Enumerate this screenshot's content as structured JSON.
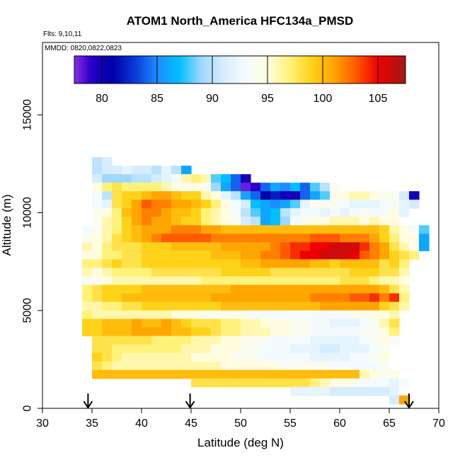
{
  "chart_data": {
    "type": "heatmap",
    "title": "ATOM1 North_America HFC134a_PMSD",
    "flights_label": "Flts: 9,10,11",
    "mmdd_label": "MMDD: 0820,0822,0823",
    "xlabel": "Latitude (deg N)",
    "ylabel": "Altitude (m)",
    "xlim": [
      30,
      70
    ],
    "ylim": [
      0,
      18700
    ],
    "x_ticks": [
      30,
      35,
      40,
      45,
      50,
      55,
      60,
      65,
      70
    ],
    "y_ticks": [
      0,
      5000,
      10000,
      15000
    ],
    "x_tick_labels": [
      "30",
      "35",
      "40",
      "45",
      "50",
      "55",
      "60",
      "65",
      "70"
    ],
    "y_tick_labels": [
      "0",
      "5000",
      "10000",
      "15000"
    ],
    "colorbar": {
      "range": [
        77.5,
        107.5
      ],
      "ticks": [
        80,
        85,
        90,
        95,
        100,
        105
      ],
      "tick_labels": [
        "80",
        "85",
        "90",
        "95",
        "100",
        "105"
      ],
      "stops": [
        {
          "value": 77.5,
          "color": "#8a2be2"
        },
        {
          "value": 79,
          "color": "#2a00c8"
        },
        {
          "value": 81,
          "color": "#0000a8"
        },
        {
          "value": 83,
          "color": "#0a3ad8"
        },
        {
          "value": 85,
          "color": "#1e8cff"
        },
        {
          "value": 87,
          "color": "#00bfff"
        },
        {
          "value": 89,
          "color": "#9fd8ff"
        },
        {
          "value": 91,
          "color": "#d6ecff"
        },
        {
          "value": 93,
          "color": "#f4fbff"
        },
        {
          "value": 95,
          "color": "#fffce0"
        },
        {
          "value": 97,
          "color": "#fff27a"
        },
        {
          "value": 99,
          "color": "#ffd21a"
        },
        {
          "value": 101,
          "color": "#ffa500"
        },
        {
          "value": 103,
          "color": "#ff5a00"
        },
        {
          "value": 105,
          "color": "#ee0000"
        },
        {
          "value": 107.5,
          "color": "#a01818"
        }
      ]
    },
    "bin": {
      "lat_width": 1.0,
      "alt_height": 435
    },
    "rows": [
      {
        "alt": 12620,
        "lat_start": 35,
        "values": [
          90,
          91
        ]
      },
      {
        "alt": 12185,
        "lat_start": 35,
        "values": [
          90,
          91,
          91,
          92,
          91,
          91,
          90,
          92,
          90,
          86
        ]
      },
      {
        "alt": 11750,
        "lat_start": 35,
        "values": [
          91,
          89,
          89,
          89,
          90,
          90,
          91,
          92,
          93,
          96,
          97,
          96,
          88,
          87,
          84,
          80
        ]
      },
      {
        "alt": 11315,
        "lat_start": 35,
        "values": [
          95,
          97,
          98,
          97,
          97,
          97,
          97,
          96,
          95,
          94,
          95,
          94,
          89,
          86,
          84,
          78,
          79,
          84,
          86,
          85,
          87,
          84,
          88,
          90,
          94
        ]
      },
      {
        "alt": 10880,
        "lat_start": 35,
        "values": [
          93,
          90,
          98,
          99,
          99,
          100,
          101,
          101,
          100,
          99,
          99,
          96,
          95,
          92,
          90,
          86,
          84,
          81,
          82,
          80,
          80,
          84,
          86,
          88,
          94,
          95,
          96,
          96,
          95,
          94,
          94,
          91,
          80
        ]
      },
      {
        "alt": 10445,
        "lat_start": 35,
        "values": [
          93,
          92,
          98,
          99,
          101,
          103,
          102,
          102,
          101,
          101,
          100,
          99,
          97,
          95,
          93,
          91,
          87,
          86,
          85,
          86,
          88,
          92,
          94,
          94,
          94,
          93,
          92,
          92,
          92,
          93,
          94,
          92,
          91
        ]
      },
      {
        "alt": 10010,
        "lat_start": 35,
        "values": [
          94,
          95,
          97,
          100,
          101,
          102,
          102,
          101,
          100,
          100,
          99,
          97,
          96,
          95,
          93,
          90,
          88,
          86,
          87,
          90,
          92,
          93,
          93,
          92,
          93,
          92,
          93,
          94,
          93,
          93,
          95,
          92
        ]
      },
      {
        "alt": 9575,
        "lat_start": 35,
        "values": [
          94,
          96,
          97,
          99,
          101,
          102,
          101,
          101,
          100,
          99,
          99,
          97,
          96,
          95,
          94,
          91,
          90,
          86,
          87,
          89,
          93,
          94,
          95,
          95,
          96,
          96,
          96,
          95,
          96,
          95,
          95
        ]
      },
      {
        "alt": 9140,
        "lat_start": 34,
        "values": [
          93,
          94,
          96,
          97,
          99,
          100,
          101,
          101,
          101,
          102,
          102,
          102,
          101,
          101,
          100,
          100,
          100,
          100,
          100,
          100,
          100,
          100,
          100,
          100,
          100,
          100,
          100,
          100,
          100,
          100,
          99,
          96,
          95,
          93,
          88
        ]
      },
      {
        "alt": 8705,
        "lat_start": 34,
        "values": [
          94,
          95,
          96,
          98,
          99,
          100,
          101,
          102,
          103,
          103,
          103,
          103,
          103,
          102,
          102,
          102,
          102,
          102,
          102,
          102,
          102,
          102,
          102,
          103,
          103,
          103,
          102,
          102,
          102,
          101,
          99,
          97,
          95,
          95,
          86
        ]
      },
      {
        "alt": 8270,
        "lat_start": 34,
        "values": [
          96,
          95,
          97,
          98,
          98,
          98,
          99,
          99,
          99,
          100,
          100,
          100,
          100,
          100,
          101,
          101,
          101,
          101,
          101,
          102,
          103,
          104,
          104,
          105,
          105,
          106,
          106,
          106,
          104,
          102,
          101,
          98,
          96,
          94,
          86
        ]
      },
      {
        "alt": 7835,
        "lat_start": 34,
        "values": [
          95,
          95,
          97,
          97,
          98,
          98,
          99,
          99,
          99,
          99,
          99,
          99,
          99,
          100,
          100,
          100,
          101,
          101,
          102,
          102,
          103,
          104,
          105,
          105,
          106,
          106,
          106,
          105,
          103,
          102,
          101,
          99,
          98,
          97
        ]
      },
      {
        "alt": 7400,
        "lat_start": 34,
        "values": [
          97,
          97,
          98,
          99,
          98,
          98,
          99,
          99,
          99,
          99,
          99,
          99,
          99,
          99,
          99,
          99,
          100,
          100,
          101,
          101,
          101,
          101,
          101,
          100,
          100,
          99,
          100,
          100,
          100,
          100,
          98,
          99,
          97
        ]
      },
      {
        "alt": 6965,
        "lat_start": 34,
        "values": [
          96,
          95,
          96,
          97,
          97,
          97,
          97,
          98,
          98,
          98,
          98,
          98,
          98,
          98,
          99,
          99,
          99,
          99,
          99,
          98,
          98,
          98,
          98,
          98,
          98,
          98,
          98,
          99,
          99,
          99,
          98,
          98,
          96
        ]
      },
      {
        "alt": 6530,
        "lat_start": 34,
        "values": [
          94,
          94,
          95,
          96,
          96,
          96,
          96,
          96,
          96,
          96,
          96,
          96,
          97,
          97,
          97,
          97,
          97,
          97,
          97,
          97,
          97,
          97,
          97,
          97,
          97,
          97,
          98,
          98,
          98,
          97,
          96,
          96,
          95
        ]
      },
      {
        "alt": 6095,
        "lat_start": 34,
        "values": [
          97,
          98,
          99,
          99,
          99,
          99,
          100,
          100,
          100,
          100,
          100,
          100,
          100,
          100,
          100,
          101,
          101,
          101,
          101,
          101,
          101,
          101,
          101,
          101,
          101,
          101,
          101,
          101,
          101,
          101,
          100,
          98,
          96
        ]
      },
      {
        "alt": 5660,
        "lat_start": 34,
        "values": [
          97,
          98,
          99,
          99,
          100,
          100,
          100,
          100,
          100,
          100,
          100,
          100,
          100,
          101,
          101,
          101,
          101,
          101,
          101,
          101,
          101,
          101,
          101,
          102,
          102,
          102,
          102,
          103,
          103,
          104,
          102,
          104,
          97
        ]
      },
      {
        "alt": 5225,
        "lat_start": 34,
        "values": [
          96,
          96,
          97,
          97,
          98,
          98,
          99,
          99,
          99,
          99,
          99,
          99,
          99,
          99,
          100,
          100,
          100,
          100,
          100,
          100,
          100,
          100,
          100,
          100,
          101,
          101,
          101,
          101,
          101,
          101,
          99,
          98,
          96
        ]
      },
      {
        "alt": 4790,
        "lat_start": 34,
        "values": [
          97,
          96,
          96,
          96,
          96,
          96,
          96,
          96,
          96,
          95,
          95,
          95,
          94,
          94,
          94,
          94,
          94,
          93,
          93,
          93,
          93,
          93,
          93,
          93,
          93,
          93,
          93,
          94,
          94,
          95,
          95,
          96
        ]
      },
      {
        "alt": 4355,
        "lat_start": 34,
        "values": [
          99,
          99,
          100,
          100,
          100,
          101,
          100,
          100,
          101,
          100,
          99,
          98,
          98,
          98,
          97,
          97,
          96,
          96,
          95,
          95,
          95,
          94,
          94,
          93,
          93,
          92,
          92,
          92,
          93,
          94,
          96,
          98
        ]
      },
      {
        "alt": 3920,
        "lat_start": 34,
        "values": [
          99,
          99,
          100,
          100,
          100,
          101,
          101,
          101,
          101,
          100,
          100,
          99,
          99,
          98,
          97,
          97,
          96,
          96,
          96,
          95,
          95,
          94,
          94,
          93,
          93,
          93,
          93,
          93,
          94,
          94,
          95,
          97
        ]
      },
      {
        "alt": 3485,
        "lat_start": 35,
        "values": [
          98,
          98,
          98,
          98,
          98,
          98,
          97,
          97,
          97,
          97,
          96,
          96,
          96,
          95,
          95,
          94,
          94,
          94,
          93,
          93,
          93,
          93,
          92,
          92,
          92,
          92,
          92,
          93,
          94,
          95,
          93
        ]
      },
      {
        "alt": 3050,
        "lat_start": 35,
        "values": [
          98,
          98,
          97,
          97,
          97,
          97,
          97,
          97,
          97,
          96,
          96,
          96,
          95,
          95,
          95,
          94,
          94,
          93,
          93,
          93,
          92,
          92,
          92,
          91,
          91,
          92,
          92,
          92,
          93,
          94
        ]
      },
      {
        "alt": 2615,
        "lat_start": 35,
        "values": [
          99,
          98,
          97,
          96,
          96,
          96,
          96,
          96,
          96,
          96,
          95,
          95,
          95,
          95,
          94,
          94,
          94,
          93,
          93,
          93,
          93,
          93,
          92,
          92,
          92,
          92,
          93,
          93,
          94,
          95
        ]
      },
      {
        "alt": 2180,
        "lat_start": 35,
        "values": [
          98,
          97,
          96,
          96,
          96,
          96,
          96,
          96,
          96,
          96,
          96,
          96,
          96,
          95,
          95,
          95,
          95,
          95,
          95,
          94,
          94,
          94,
          94,
          94,
          93,
          93,
          93,
          93,
          93,
          94
        ]
      },
      {
        "alt": 1745,
        "lat_start": 35,
        "values": [
          100,
          100,
          100,
          100,
          100,
          100,
          100,
          100,
          100,
          100,
          100,
          100,
          100,
          100,
          100,
          100,
          100,
          100,
          100,
          100,
          100,
          100,
          100,
          100,
          100,
          100,
          100,
          96,
          95,
          94,
          95
        ]
      },
      {
        "alt": 1310,
        "lat_start": 45,
        "values": [
          98,
          98,
          98,
          98,
          98,
          98,
          98,
          98,
          98,
          98,
          98,
          98,
          97,
          96,
          95,
          95,
          94,
          93,
          93,
          93,
          92,
          93
        ]
      },
      {
        "alt": 875,
        "lat_start": 55,
        "values": [
          92,
          92,
          92,
          92,
          91,
          91,
          91,
          91,
          91,
          91,
          92
        ]
      },
      {
        "alt": 440,
        "lat_start": 65,
        "values": [
          91,
          101
        ]
      }
    ],
    "arrows_at_lat": [
      34.6,
      44.9,
      67.0
    ]
  }
}
